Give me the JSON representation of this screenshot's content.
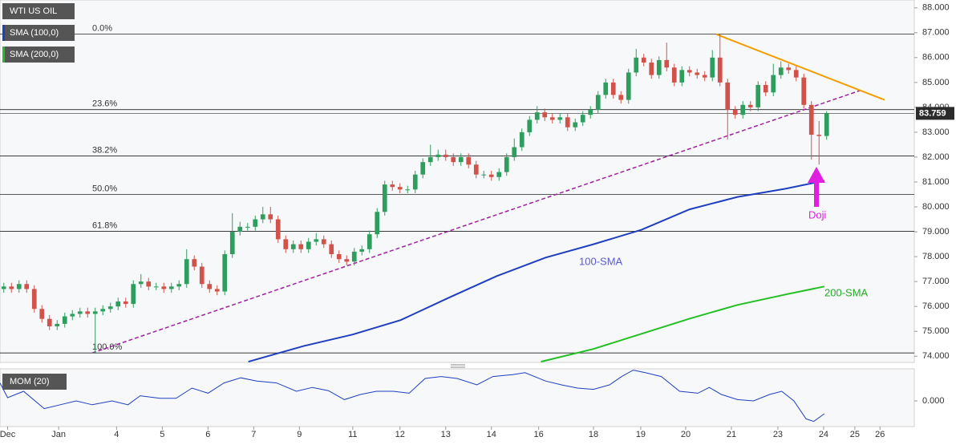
{
  "chart_data": [
    {
      "type": "candlestick",
      "xlim": [
        -0.5,
        119.5
      ],
      "ylim": [
        73.75,
        88.25
      ],
      "xticks": [
        {
          "value": 0.5,
          "label": "Dec"
        },
        {
          "value": 7.2,
          "label": "Jan"
        },
        {
          "value": 14.8,
          "label": "4"
        },
        {
          "value": 20.8,
          "label": "5"
        },
        {
          "value": 26.8,
          "label": "6"
        },
        {
          "value": 32.8,
          "label": "7"
        },
        {
          "value": 38.8,
          "label": "9"
        },
        {
          "value": 45.8,
          "label": "11"
        },
        {
          "value": 52,
          "label": "12"
        },
        {
          "value": 58,
          "label": "13"
        },
        {
          "value": 64,
          "label": "14"
        },
        {
          "value": 70.2,
          "label": "16"
        },
        {
          "value": 77.4,
          "label": "18"
        },
        {
          "value": 83.6,
          "label": "19"
        },
        {
          "value": 89.5,
          "label": "20"
        },
        {
          "value": 95.5,
          "label": "21"
        },
        {
          "value": 101.6,
          "label": "23"
        },
        {
          "value": 107.6,
          "label": "24"
        },
        {
          "value": 111.7,
          "label": "25"
        },
        {
          "value": 115,
          "label": "26"
        }
      ],
      "yticks": [
        {
          "value": 88,
          "label": "88.000"
        },
        {
          "value": 87,
          "label": "87.000"
        },
        {
          "value": 86,
          "label": "86.000"
        },
        {
          "value": 85,
          "label": "85.000"
        },
        {
          "value": 84,
          "label": "84.000"
        },
        {
          "value": 83,
          "label": "83.000"
        },
        {
          "value": 82,
          "label": "82.000"
        },
        {
          "value": 81,
          "label": "81.000"
        },
        {
          "value": 80,
          "label": "80.000"
        },
        {
          "value": 79,
          "label": "79.000"
        },
        {
          "value": 78,
          "label": "78.000"
        },
        {
          "value": 77,
          "label": "77.000"
        },
        {
          "value": 76,
          "label": "76.000"
        },
        {
          "value": 75,
          "label": "75.000"
        },
        {
          "value": 74,
          "label": "74.000"
        }
      ],
      "up_color": "#2e9e5e",
      "down_color": "#d0524a",
      "series": [
        {
          "name": "WTI US OIL",
          "color": "#555555",
          "open": [
            76.7,
            76.8,
            76.7,
            76.9,
            76.7,
            75.9,
            75.5,
            75.2,
            75.3,
            75.6,
            75.7,
            75.8,
            75.7,
            75.8,
            75.9,
            76.0,
            76.2,
            76.1,
            76.9,
            77.0,
            76.8,
            76.8,
            76.7,
            76.8,
            76.9,
            77.9,
            77.6,
            76.9,
            76.7,
            76.6,
            78.1,
            79.0,
            79.2,
            79.2,
            79.5,
            79.7,
            79.5,
            78.7,
            78.3,
            78.5,
            78.3,
            78.6,
            78.7,
            78.5,
            78.1,
            77.9,
            77.8,
            78.2,
            78.3,
            78.9,
            79.8,
            80.9,
            80.8,
            80.7,
            80.7,
            81.3,
            81.8,
            82.0,
            82.1,
            82.0,
            81.8,
            82.0,
            81.7,
            81.3,
            81.3,
            81.2,
            81.4,
            82.0,
            82.4,
            83.0,
            83.5,
            83.8,
            83.6,
            83.5,
            83.6,
            83.2,
            83.4,
            83.7,
            83.9,
            84.5,
            85.0,
            84.5,
            84.3,
            85.4,
            86.0,
            85.8,
            85.3,
            85.9,
            85.6,
            85.0,
            85.5,
            85.4,
            85.3,
            85.2,
            86.0,
            85.0,
            83.9,
            83.7,
            84.1,
            84.0,
            84.9,
            84.6,
            85.3,
            85.6,
            85.5,
            85.2,
            84.1,
            82.9,
            82.85
          ],
          "high": [
            76.95,
            76.95,
            77.05,
            77.05,
            76.85,
            76.05,
            75.65,
            75.45,
            75.75,
            75.85,
            75.95,
            75.95,
            75.95,
            76.05,
            76.15,
            76.35,
            76.35,
            77.05,
            77.3,
            77.15,
            76.95,
            76.95,
            76.95,
            77.05,
            78.3,
            78.05,
            77.75,
            77.05,
            76.85,
            78.25,
            79.75,
            79.4,
            79.35,
            79.65,
            80.0,
            80.0,
            79.65,
            78.85,
            78.65,
            78.65,
            78.75,
            78.95,
            78.85,
            78.65,
            78.25,
            78.05,
            78.35,
            78.45,
            79.05,
            79.95,
            81.05,
            81.05,
            80.95,
            80.85,
            81.45,
            81.95,
            82.5,
            82.3,
            82.3,
            82.15,
            82.15,
            82.15,
            81.85,
            81.45,
            81.45,
            81.55,
            82.15,
            82.75,
            83.15,
            83.65,
            84.05,
            83.95,
            83.75,
            83.75,
            83.75,
            83.55,
            83.85,
            84.05,
            84.65,
            85.15,
            85.15,
            84.65,
            85.55,
            86.35,
            86.15,
            85.95,
            86.05,
            86.6,
            85.75,
            85.65,
            85.65,
            85.55,
            85.45,
            86.3,
            86.94,
            85.15,
            84.05,
            84.25,
            84.25,
            85.05,
            85.05,
            85.75,
            85.85,
            85.75,
            85.65,
            85.35,
            84.25,
            83.45,
            83.85
          ],
          "low": [
            76.55,
            76.55,
            76.55,
            76.55,
            75.75,
            75.35,
            75.05,
            75.05,
            75.15,
            75.45,
            75.55,
            75.55,
            74.1,
            75.65,
            75.75,
            75.85,
            75.95,
            75.95,
            76.75,
            76.65,
            76.65,
            76.55,
            76.55,
            76.65,
            76.75,
            77.45,
            76.75,
            76.55,
            76.45,
            76.45,
            77.95,
            78.85,
            79.05,
            79.05,
            79.35,
            79.35,
            78.55,
            78.15,
            78.15,
            78.15,
            78.15,
            78.45,
            78.35,
            77.95,
            77.75,
            77.65,
            77.65,
            78.05,
            78.15,
            78.75,
            79.65,
            80.65,
            80.55,
            80.55,
            80.55,
            81.15,
            81.65,
            81.85,
            81.85,
            81.65,
            81.65,
            81.55,
            81.15,
            81.15,
            81.05,
            81.05,
            81.25,
            81.85,
            82.25,
            82.85,
            83.35,
            83.45,
            83.35,
            83.35,
            83.05,
            83.05,
            83.25,
            83.55,
            83.75,
            84.35,
            84.35,
            84.15,
            84.15,
            85.25,
            85.65,
            85.15,
            85.15,
            85.45,
            84.85,
            84.85,
            85.25,
            85.15,
            85.05,
            85.05,
            84.85,
            82.7,
            83.55,
            83.55,
            83.85,
            83.85,
            84.45,
            84.45,
            85.15,
            85.35,
            85.05,
            83.95,
            81.9,
            81.7,
            82.7
          ],
          "close": [
            76.8,
            76.7,
            76.9,
            76.7,
            75.9,
            75.5,
            75.2,
            75.3,
            75.6,
            75.7,
            75.8,
            75.7,
            75.8,
            75.9,
            76.0,
            76.2,
            76.1,
            76.9,
            77.0,
            76.8,
            76.8,
            76.7,
            76.8,
            76.9,
            77.9,
            77.6,
            76.9,
            76.7,
            76.6,
            78.1,
            79.0,
            79.2,
            79.2,
            79.5,
            79.7,
            79.5,
            78.7,
            78.3,
            78.5,
            78.3,
            78.6,
            78.7,
            78.5,
            78.1,
            77.9,
            77.8,
            78.2,
            78.3,
            78.9,
            79.8,
            80.9,
            80.8,
            80.7,
            80.7,
            81.3,
            81.8,
            82.0,
            82.1,
            82.0,
            81.8,
            82.0,
            81.7,
            81.3,
            81.3,
            81.2,
            81.4,
            82.0,
            82.4,
            83.0,
            83.5,
            83.8,
            83.6,
            83.5,
            83.6,
            83.2,
            83.4,
            83.7,
            83.9,
            84.5,
            85.0,
            84.5,
            84.3,
            85.4,
            86.0,
            85.8,
            85.3,
            85.9,
            85.6,
            85.0,
            85.5,
            85.4,
            85.3,
            85.2,
            86.0,
            85.0,
            83.9,
            83.7,
            84.1,
            84.0,
            84.9,
            84.6,
            85.3,
            85.6,
            85.5,
            85.2,
            84.1,
            82.9,
            82.85,
            83.759
          ]
        },
        {
          "name": "SMA (100,0)",
          "color": "#1f3fbf",
          "x": [
            32.1,
            39.5,
            45.8,
            52.1,
            58.4,
            64.7,
            71.1,
            77.4,
            83.7,
            90,
            96.3,
            102.6,
            107.7
          ],
          "values": [
            73.78,
            74.42,
            74.87,
            75.45,
            76.35,
            77.22,
            77.96,
            78.5,
            79.08,
            79.9,
            80.4,
            80.73,
            81.05
          ]
        },
        {
          "name": "SMA (200,0)",
          "color": "#22c022",
          "x": [
            70.5,
            77.4,
            83.7,
            90,
            96.3,
            102.6,
            107.7
          ],
          "values": [
            73.78,
            74.29,
            74.9,
            75.51,
            76.06,
            76.48,
            76.8
          ]
        }
      ],
      "fib_levels": [
        {
          "label": "0.0%",
          "value": 86.94
        },
        {
          "label": "23.6%",
          "value": 83.91
        },
        {
          "label": "38.2%",
          "value": 82.05
        },
        {
          "label": "50.0%",
          "value": 80.5
        },
        {
          "label": "61.8%",
          "value": 79.02
        },
        {
          "label": "100.0%",
          "value": 74.13
        }
      ],
      "trendlines": [
        {
          "color": "#a020a0",
          "x": [
            11.6,
            112.6
          ],
          "values": [
            74.13,
            84.7
          ]
        },
        {
          "color": "#f59c00",
          "x": [
            93.5,
            115.6
          ],
          "values": [
            86.94,
            84.3
          ]
        }
      ],
      "last_price": 83.759,
      "annotations": [
        {
          "text": "100-SMA",
          "color": "#5a5ad0"
        },
        {
          "text": "200-SMA",
          "color": "#22aa22"
        },
        {
          "text": "Doji",
          "color": "#e020e0"
        }
      ]
    },
    {
      "type": "line",
      "title": "MOM (20)",
      "color": "#1f3fbf",
      "xlim": [
        -0.5,
        119.5
      ],
      "ylim": [
        -2,
        2.5
      ],
      "yticks": [
        {
          "value": 0,
          "label": "0.000"
        }
      ],
      "x": [
        -0.5,
        0.5,
        2.6,
        5.3,
        7.4,
        9.5,
        11.6,
        14.2,
        16.3,
        17.9,
        20.5,
        22.6,
        24.7,
        26.8,
        28.9,
        31.1,
        33.2,
        35.8,
        38.4,
        40.5,
        42.6,
        44.7,
        46.8,
        48.9,
        51.1,
        53.2,
        55.3,
        57.4,
        59.5,
        62.1,
        64.2,
        66.8,
        68.4,
        71.1,
        73.2,
        75.3,
        77.4,
        79.5,
        81.1,
        82.6,
        84.2,
        86.3,
        88.7,
        91.1,
        92.6,
        94.2,
        96.3,
        98.4,
        100.5,
        102.1,
        103.7,
        105.3,
        106.3,
        107.7
      ],
      "values": [
        1.4,
        0.25,
        0.75,
        -0.6,
        -0.3,
        0,
        -0.3,
        0,
        -0.3,
        0.4,
        0.2,
        0.2,
        1.0,
        0.6,
        1.4,
        1.8,
        1.55,
        1.4,
        0.75,
        1.05,
        0.8,
        0.1,
        0.5,
        0.75,
        0.75,
        0.6,
        1.75,
        1.9,
        1.75,
        1.25,
        1.9,
        2.05,
        2.2,
        1.55,
        1.25,
        1.0,
        0.9,
        1.25,
        1.9,
        2.4,
        2.2,
        1.9,
        0.75,
        0.6,
        1.05,
        0.5,
        0.1,
        0,
        0.5,
        0.75,
        0,
        -1.4,
        -1.6,
        -1.0
      ]
    }
  ]
}
